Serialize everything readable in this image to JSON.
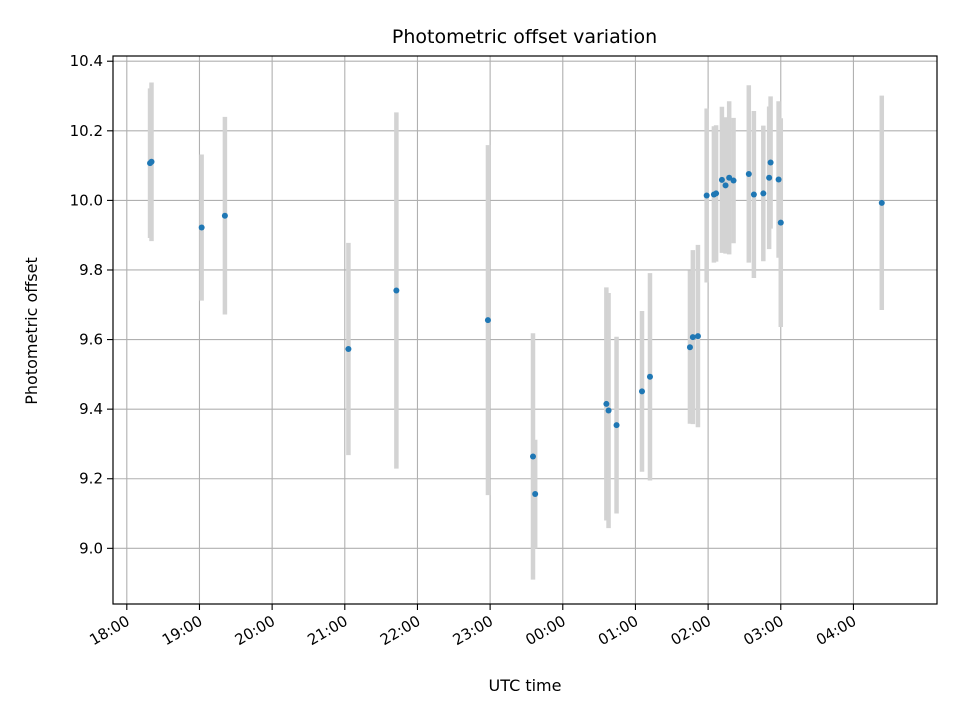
{
  "chart_data": {
    "type": "scatter",
    "title": "Photometric offset variation",
    "xlabel": "UTC time",
    "ylabel": "Photometric offset",
    "x_unit": "hours since 18:00 UTC",
    "xlim": [
      -0.19,
      11.15
    ],
    "ylim": [
      8.84,
      10.415
    ],
    "grid": true,
    "legend": "none",
    "x_ticks": [
      {
        "value": 0,
        "label": "18:00"
      },
      {
        "value": 1,
        "label": "19:00"
      },
      {
        "value": 2,
        "label": "20:00"
      },
      {
        "value": 3,
        "label": "21:00"
      },
      {
        "value": 4,
        "label": "22:00"
      },
      {
        "value": 5,
        "label": "23:00"
      },
      {
        "value": 6,
        "label": "00:00"
      },
      {
        "value": 7,
        "label": "01:00"
      },
      {
        "value": 8,
        "label": "02:00"
      },
      {
        "value": 9,
        "label": "03:00"
      },
      {
        "value": 10,
        "label": "04:00"
      }
    ],
    "y_ticks": [
      {
        "value": 9.0,
        "label": "9.0"
      },
      {
        "value": 9.2,
        "label": "9.2"
      },
      {
        "value": 9.4,
        "label": "9.4"
      },
      {
        "value": 9.6,
        "label": "9.6"
      },
      {
        "value": 9.8,
        "label": "9.8"
      },
      {
        "value": 10.0,
        "label": "10.0"
      },
      {
        "value": 10.2,
        "label": "10.2"
      },
      {
        "value": 10.4,
        "label": "10.4"
      }
    ],
    "colors": {
      "point": "#1f77b4",
      "errorbar": "#d3d3d3",
      "grid": "#b0b0b0"
    },
    "points": [
      {
        "x": 0.32,
        "y": 10.107,
        "err": 0.215
      },
      {
        "x": 0.34,
        "y": 10.111,
        "err": 0.228
      },
      {
        "x": 1.03,
        "y": 9.922,
        "err": 0.21
      },
      {
        "x": 1.35,
        "y": 9.956,
        "err": 0.284
      },
      {
        "x": 3.05,
        "y": 9.573,
        "err": 0.305
      },
      {
        "x": 3.71,
        "y": 9.741,
        "err": 0.512
      },
      {
        "x": 4.97,
        "y": 9.656,
        "err": 0.503
      },
      {
        "x": 5.59,
        "y": 9.264,
        "err": 0.354
      },
      {
        "x": 5.62,
        "y": 9.156,
        "err": 0.156
      },
      {
        "x": 6.6,
        "y": 9.415,
        "err": 0.335
      },
      {
        "x": 6.63,
        "y": 9.396,
        "err": 0.338
      },
      {
        "x": 6.74,
        "y": 9.354,
        "err": 0.254
      },
      {
        "x": 7.09,
        "y": 9.451,
        "err": 0.231
      },
      {
        "x": 7.2,
        "y": 9.493,
        "err": 0.298
      },
      {
        "x": 7.75,
        "y": 9.578,
        "err": 0.22
      },
      {
        "x": 7.79,
        "y": 9.607,
        "err": 0.25
      },
      {
        "x": 7.86,
        "y": 9.61,
        "err": 0.262
      },
      {
        "x": 7.98,
        "y": 10.014,
        "err": 0.25
      },
      {
        "x": 8.08,
        "y": 10.017,
        "err": 0.196
      },
      {
        "x": 8.11,
        "y": 10.02,
        "err": 0.196
      },
      {
        "x": 8.19,
        "y": 10.059,
        "err": 0.21
      },
      {
        "x": 8.24,
        "y": 10.043,
        "err": 0.196
      },
      {
        "x": 8.29,
        "y": 10.065,
        "err": 0.22
      },
      {
        "x": 8.35,
        "y": 10.057,
        "err": 0.18
      },
      {
        "x": 8.56,
        "y": 10.076,
        "err": 0.255
      },
      {
        "x": 8.63,
        "y": 10.017,
        "err": 0.24
      },
      {
        "x": 8.76,
        "y": 10.02,
        "err": 0.195
      },
      {
        "x": 8.84,
        "y": 10.065,
        "err": 0.205
      },
      {
        "x": 8.86,
        "y": 10.109,
        "err": 0.19
      },
      {
        "x": 8.97,
        "y": 10.06,
        "err": 0.225
      },
      {
        "x": 9.0,
        "y": 9.936,
        "err": 0.3
      },
      {
        "x": 10.39,
        "y": 9.993,
        "err": 0.308
      }
    ]
  }
}
